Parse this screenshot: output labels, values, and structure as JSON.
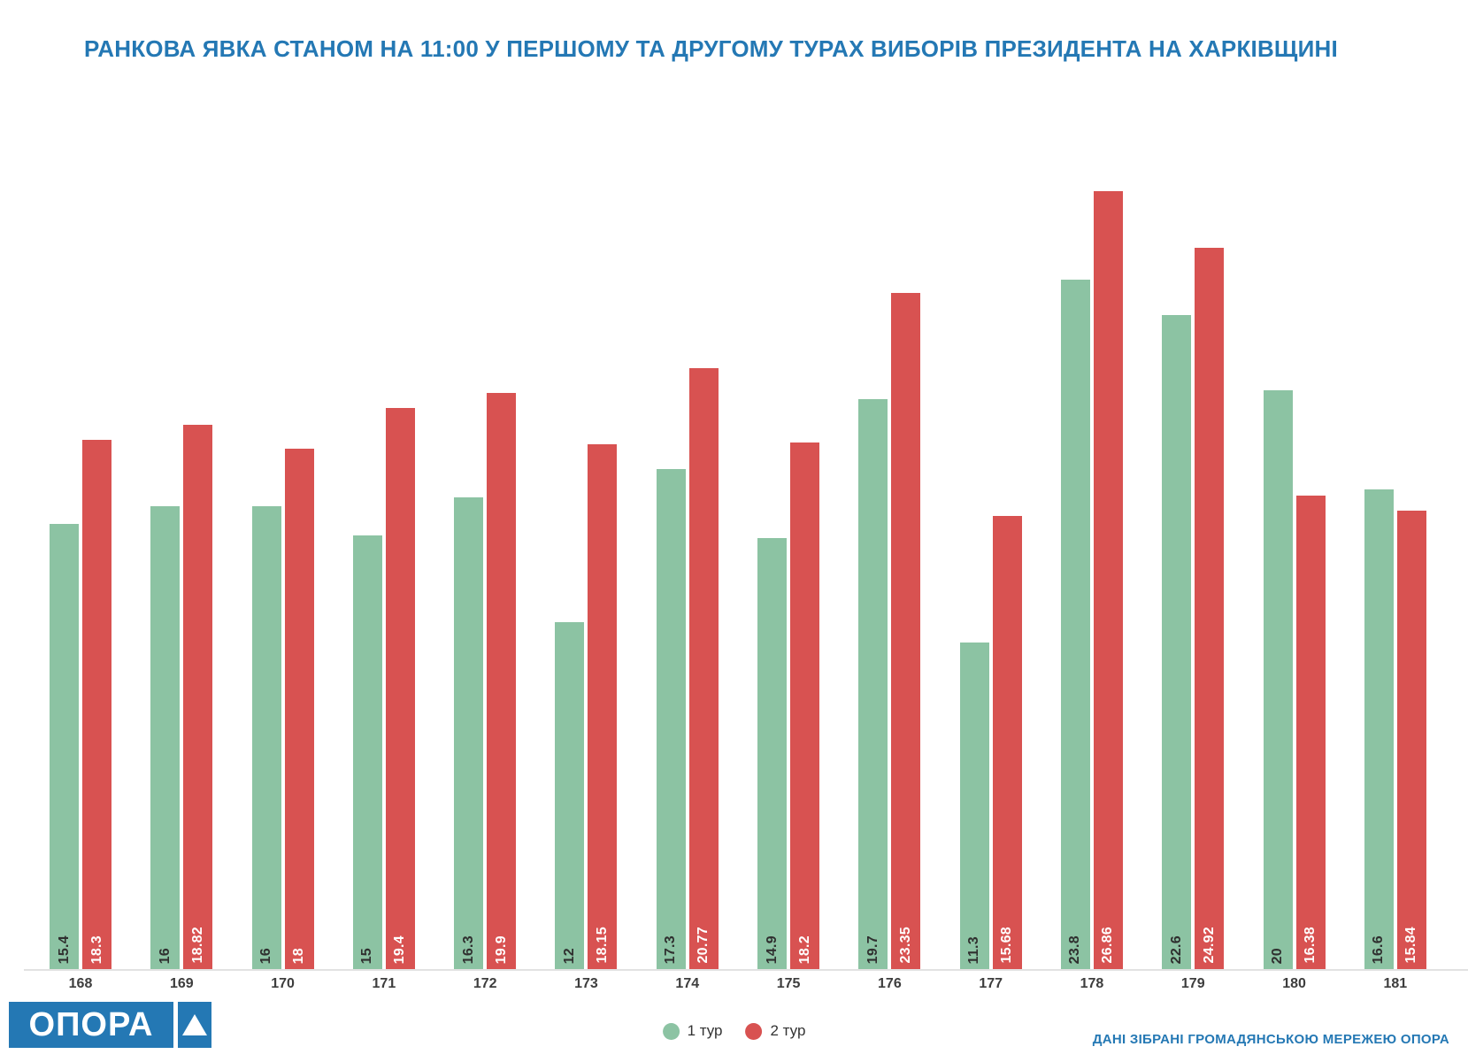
{
  "title": "РАНКОВА ЯВКА СТАНОМ НА 11:00 У ПЕРШОМУ ТА ДРУГОМУ ТУРАХ ВИБОРІВ ПРЕЗИДЕНТА НА ХАРКІВЩИНІ",
  "chart_data": {
    "type": "bar",
    "title": "РАНКОВА ЯВКА СТАНОМ НА 11:00 У ПЕРШОМУ ТА ДРУГОМУ ТУРАХ ВИБОРІВ ПРЕЗИДЕНТА НА ХАРКІВЩИНІ",
    "categories": [
      "168",
      "169",
      "170",
      "171",
      "172",
      "173",
      "174",
      "175",
      "176",
      "177",
      "178",
      "179",
      "180",
      "181"
    ],
    "series": [
      {
        "name": "1 тур",
        "color": "#8cc3a3",
        "label_color": "#2f2f2f",
        "values": [
          15.4,
          16,
          16,
          15,
          16.3,
          12,
          17.3,
          14.9,
          19.7,
          11.3,
          23.8,
          22.6,
          20,
          16.6
        ]
      },
      {
        "name": "2 тур",
        "color": "#d85251",
        "label_color": "#ffffff",
        "values": [
          18.3,
          18.82,
          18,
          19.4,
          19.9,
          18.15,
          20.77,
          18.2,
          23.35,
          15.68,
          26.86,
          24.92,
          16.38,
          15.84
        ]
      }
    ],
    "xlabel": "",
    "ylabel": "",
    "ylim": [
      0,
      27
    ],
    "grid": "off",
    "value_labels": "rotated 90°, inside bar near bottom",
    "legend_position": "bottom-center"
  },
  "legend": {
    "items": [
      {
        "label": "1 тур",
        "color": "#8cc3a3"
      },
      {
        "label": "2 тур",
        "color": "#d85251"
      }
    ]
  },
  "logo": {
    "text": "ОПОРА"
  },
  "footer": {
    "credit": "ДАНІ ЗІБРАНІ ГРОМАДЯНСЬКОЮ МЕРЕЖЕЮ ОПОРА"
  },
  "colors": {
    "accent_blue": "#2478b4",
    "round1_green": "#8cc3a3",
    "round2_red": "#d85251",
    "axis_line": "#e2e2e2",
    "axis_label": "#3d3d3d"
  }
}
